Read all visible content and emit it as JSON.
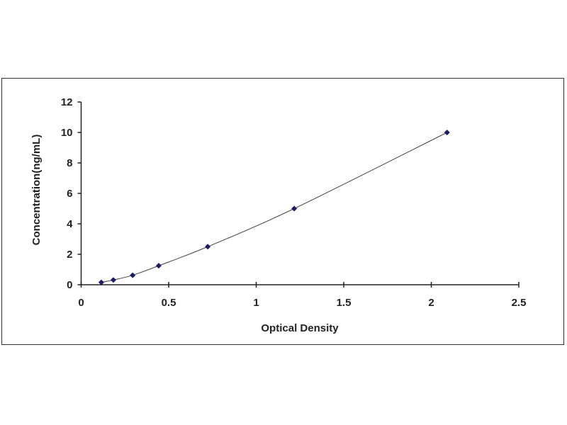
{
  "chart_data": {
    "type": "scatter",
    "title": "",
    "xlabel": "Optical Density",
    "ylabel": "Concentration(ng/mL)",
    "xlim": [
      0,
      2.5
    ],
    "ylim": [
      0,
      12
    ],
    "xticks": [
      "0",
      "0.5",
      "1",
      "1.5",
      "2",
      "2.5"
    ],
    "yticks": [
      "0",
      "2",
      "4",
      "6",
      "8",
      "10",
      "12"
    ],
    "grid": false,
    "legend": "none",
    "trendline": "smooth curve through points",
    "series": [
      {
        "x": [
          0.115,
          0.184,
          0.294,
          0.443,
          0.723,
          1.217,
          2.09
        ],
        "y": [
          0.156,
          0.312,
          0.625,
          1.25,
          2.5,
          5,
          10
        ],
        "color": "#1a1a66"
      }
    ]
  }
}
